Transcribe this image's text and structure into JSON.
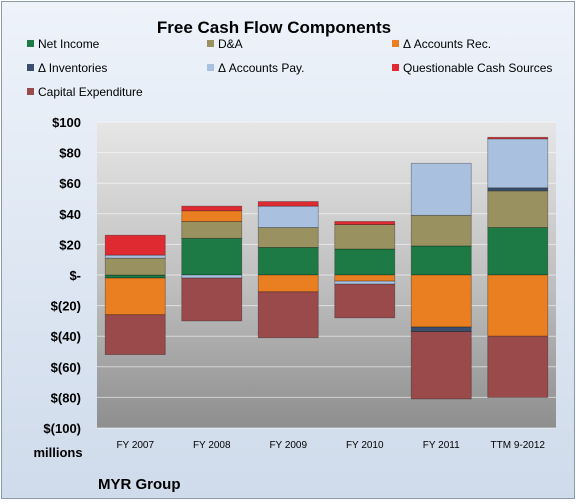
{
  "chart_data": {
    "type": "bar",
    "stacked": true,
    "title": "Free Cash Flow Components",
    "units_label": "millions",
    "company": "MYR Group",
    "categories": [
      "FY 2007",
      "FY 2008",
      "FY 2009",
      "FY 2010",
      "FY 2011",
      "TTM 9-2012"
    ],
    "ylim": [
      -100,
      100
    ],
    "yticks": [
      -100,
      -80,
      -60,
      -40,
      -20,
      0,
      20,
      40,
      60,
      80,
      100
    ],
    "ytick_labels": [
      "$(100)",
      "$(80)",
      "$(60)",
      "$(40)",
      "$(20)",
      "$-",
      "$20",
      "$40",
      "$60",
      "$80",
      "$100"
    ],
    "grid": true,
    "legend_position": "top",
    "series": [
      {
        "name": "Net Income",
        "color": "#1e7a45",
        "values": [
          -2,
          24,
          18,
          17,
          19,
          31
        ]
      },
      {
        "name": "D&A",
        "color": "#9a9160",
        "values": [
          11,
          11,
          13,
          16,
          20,
          24
        ]
      },
      {
        "name": "Δ Accounts Rec.",
        "color": "#ea7f22",
        "values": [
          -24,
          7,
          -11,
          -4,
          -34,
          -40
        ]
      },
      {
        "name": "Δ Inventories",
        "color": "#3a4f6e",
        "values": [
          0,
          0,
          0,
          0,
          -3,
          2
        ]
      },
      {
        "name": "Δ Accounts Pay.",
        "color": "#a9c0de",
        "values": [
          2,
          -2,
          14,
          -2,
          34,
          32
        ]
      },
      {
        "name": "Questionable Cash Sources",
        "color": "#e02a32",
        "values": [
          13,
          3,
          3,
          2,
          0,
          1
        ]
      },
      {
        "name": "Capital Expenditure",
        "color": "#9b4a4c",
        "values": [
          -26,
          -28,
          -30,
          -22,
          -44,
          -40
        ]
      }
    ]
  }
}
